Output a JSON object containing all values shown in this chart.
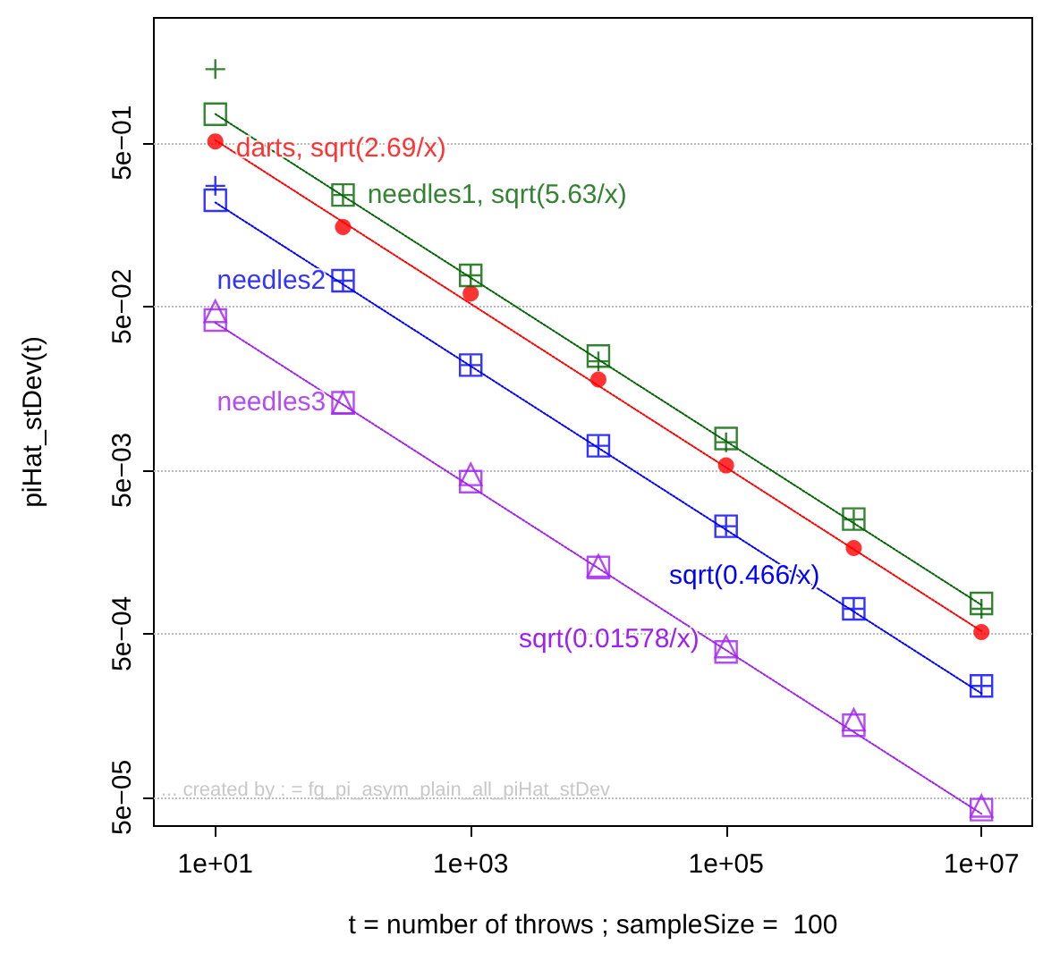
{
  "chart_data": {
    "type": "scatter",
    "xlabel": "t = number of throws ; sampleSize =  100",
    "ylabel": "piHat_stDev(t)",
    "log": "xy",
    "grid": "y",
    "legend": false,
    "xlim": [
      3.3,
      25000000
    ],
    "ylim": [
      3.34e-05,
      2.9
    ],
    "xticks": [
      {
        "value": 10,
        "label": "1e+01"
      },
      {
        "value": 1000,
        "label": "1e+03"
      },
      {
        "value": 100000,
        "label": "1e+05"
      },
      {
        "value": 10000000,
        "label": "1e+07"
      }
    ],
    "yticks": [
      {
        "value": 5e-05,
        "label": "5e−05"
      },
      {
        "value": 0.0005,
        "label": "5e−04"
      },
      {
        "value": 0.005,
        "label": "5e−03"
      },
      {
        "value": 0.05,
        "label": "5e−02"
      },
      {
        "value": 0.5,
        "label": "5e−01"
      }
    ],
    "x": [
      10,
      100,
      1000,
      10000,
      100000,
      1000000,
      10000000
    ],
    "series": [
      {
        "type": "line",
        "color": "#ff0000",
        "line_style": "dotted",
        "marker": "none",
        "values": [
          0.519,
          0.164,
          0.0519,
          0.0164,
          0.00519,
          0.00164,
          0.000519
        ]
      },
      {
        "type": "line",
        "color": "#006400",
        "line_style": "dotted",
        "marker": "none",
        "values": [
          0.75,
          0.237,
          0.075,
          0.0237,
          0.0075,
          0.00237,
          0.00075
        ]
      },
      {
        "type": "line",
        "name": "sqrt(0.466/x)",
        "color": "#0000ff",
        "line_style": "dotted",
        "marker": "none",
        "values": [
          0.216,
          0.0683,
          0.0216,
          0.00683,
          0.00216,
          0.000683,
          0.000216
        ]
      },
      {
        "type": "line",
        "name": "sqrt(0.01578/x)",
        "color": "#a020f0",
        "line_style": "dotted",
        "marker": "none",
        "values": [
          0.0397,
          0.01256,
          0.00397,
          0.001256,
          0.000397,
          0.0001256,
          3.97e-05
        ]
      },
      {
        "name": "darts, sqrt(2.69/x)",
        "color": "#ff0000",
        "marker": "circle",
        "values": [
          0.51,
          0.153,
          0.06,
          0.0179,
          0.00534,
          0.00167,
          0.000512
        ]
      },
      {
        "name": "needles1, sqrt(5.63/x)",
        "color": "#006400",
        "marker": "square",
        "values": [
          0.748,
          0.24,
          0.0774,
          0.0249,
          0.0078,
          0.00251,
          0.000766
        ]
      },
      {
        "color": "#006400",
        "marker": "cross",
        "values": [
          1.41,
          0.24,
          0.0774,
          0.0231,
          0.0074,
          0.0025,
          0.00071
        ]
      },
      {
        "name": "needles2",
        "color": "#0000ff",
        "marker": "square",
        "values": [
          0.223,
          0.0718,
          0.0219,
          0.00704,
          0.00227,
          0.00071,
          0.00024
        ]
      },
      {
        "color": "#0000ff",
        "marker": "cross",
        "values": [
          0.273,
          0.0718,
          0.0219,
          0.00704,
          0.00227,
          0.00071,
          0.00024
        ]
      },
      {
        "name": "needles3",
        "color": "#a020f0",
        "marker": "square",
        "values": [
          0.0413,
          0.0129,
          0.00425,
          0.00127,
          0.000387,
          0.000138,
          4.21e-05
        ]
      },
      {
        "color": "#a020f0",
        "marker": "triangle",
        "values": [
          0.0467,
          0.0129,
          0.00471,
          0.0013,
          0.000417,
          0.000149,
          4.43e-05
        ]
      }
    ],
    "annotations": [
      "... created by : = fg_pi_asym_plain_all_piHat_stDev"
    ]
  }
}
